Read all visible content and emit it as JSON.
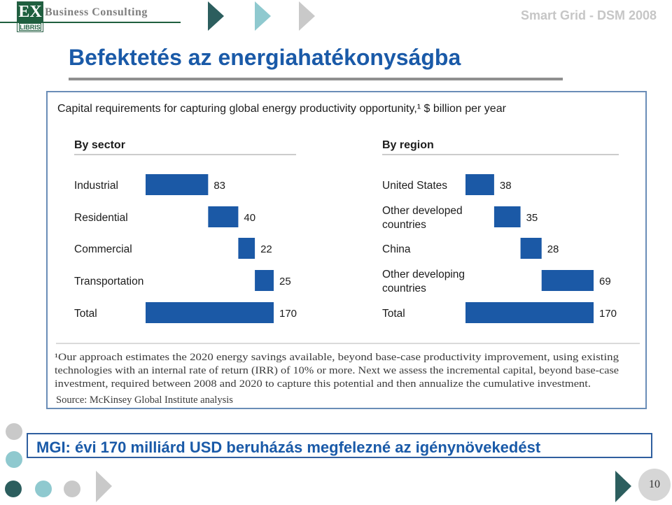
{
  "header": {
    "logo_text": "EX",
    "logo_sub": "LIBRIS",
    "brand": "Business Consulting",
    "conference": "Smart Grid - DSM 2008"
  },
  "slide_title": "Befektetés az energiahatékonyságba",
  "caption": "MGI: évi 170 milliárd USD beruházás megfelezné az igénynövekedést",
  "page_number": "10",
  "colors": {
    "bar": "#1b59a6",
    "title": "#1a5aa8",
    "frame": "#6a8db7",
    "accent_teal": "#8fc9cf",
    "accent_dark": "#2c5e5e",
    "accent_grey": "#c9c9c9"
  },
  "chart_data": [
    {
      "type": "bar",
      "title": "Capital requirements for capturing global energy productivity opportunity,¹ $ billion per year",
      "panel_title": "By sector",
      "categories": [
        "Industrial",
        "Residential",
        "Commercial",
        "Transportation",
        "Total"
      ],
      "values": [
        83,
        40,
        22,
        25,
        170
      ],
      "value_labels": [
        "83",
        "40",
        "22",
        "25",
        "170"
      ]
    },
    {
      "type": "bar",
      "panel_title": "By region",
      "categories": [
        [
          "United States"
        ],
        [
          "Other developed",
          "countries"
        ],
        [
          "China"
        ],
        [
          "Other developing",
          "countries"
        ],
        [
          "Total"
        ]
      ],
      "values": [
        38,
        35,
        28,
        69,
        170
      ],
      "value_labels": [
        "38",
        "35",
        "28",
        "69",
        "170"
      ]
    }
  ],
  "footnote": {
    "lines": [
      "¹Our approach estimates the 2020 energy savings available, beyond base-case productivity improvement, using existing",
      "technologies with an internal rate of return (IRR) of 10% or more. Next we assess the incremental capital, beyond base-case",
      "investment, required between 2008 and 2020 to capture this potential and then annualize the cumulative investment."
    ],
    "source": "Source: McKinsey Global Institute analysis"
  }
}
